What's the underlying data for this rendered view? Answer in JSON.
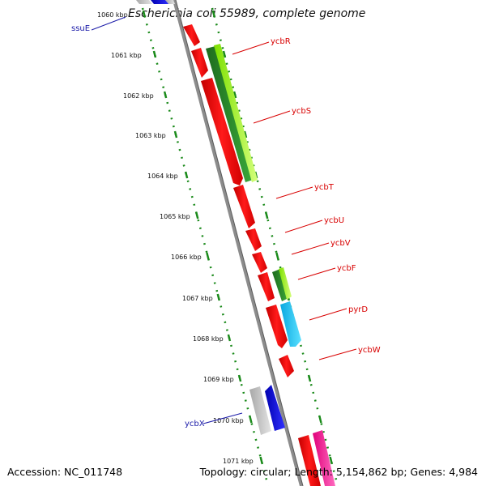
{
  "title": "Escherichia coli 55989, complete genome",
  "footer": {
    "accession": "Accession: NC_011748",
    "topology": "Topology: circular; Length: 5,154,862 bp; Genes: 4,984"
  },
  "scale_labels": [
    "1060 kbp",
    "1061 kbp",
    "1062 kbp",
    "1063 kbp",
    "1064 kbp",
    "1065 kbp",
    "1066 kbp",
    "1067 kbp",
    "1068 kbp",
    "1069 kbp",
    "1070 kbp",
    "1071 kbp"
  ],
  "gene_labels": [
    {
      "name": "ssuE",
      "color": "#1a1aa8"
    },
    {
      "name": "ycbR",
      "color": "#d80000"
    },
    {
      "name": "ycbS",
      "color": "#d80000"
    },
    {
      "name": "ycbT",
      "color": "#d80000"
    },
    {
      "name": "ycbU",
      "color": "#d80000"
    },
    {
      "name": "ycbV",
      "color": "#d80000"
    },
    {
      "name": "ycbF",
      "color": "#d80000"
    },
    {
      "name": "pyrD",
      "color": "#d80000"
    },
    {
      "name": "ycbW",
      "color": "#d80000"
    },
    {
      "name": "ycbX",
      "color": "#1a1aa8"
    }
  ],
  "colors": {
    "backbone": "#8c8c8c",
    "ruler": "#1a8a1a",
    "gene_red": "#ff0000",
    "gene_green": "#2e8b2e",
    "gene_lime": "#a8ff3a",
    "gene_cyan": "#18c8f0",
    "gene_blue": "#0a0aee",
    "gene_gray": "#c8c8c8",
    "gene_pink": "#ff2a9a"
  }
}
